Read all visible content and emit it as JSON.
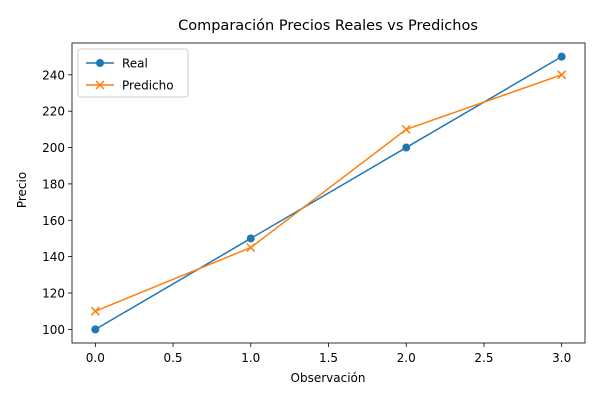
{
  "chart_data": {
    "type": "line",
    "title": "Comparación Precios Reales vs Predichos",
    "xlabel": "Observación",
    "ylabel": "Precio",
    "xlim": [
      -0.15,
      3.15
    ],
    "ylim": [
      92.5,
      257.5
    ],
    "x_ticks": [
      0.0,
      0.5,
      1.0,
      1.5,
      2.0,
      2.5,
      3.0
    ],
    "x_tick_labels": [
      "0.0",
      "0.5",
      "1.0",
      "1.5",
      "2.0",
      "2.5",
      "3.0"
    ],
    "y_ticks": [
      100,
      120,
      140,
      160,
      180,
      200,
      220,
      240
    ],
    "y_tick_labels": [
      "100",
      "120",
      "140",
      "160",
      "180",
      "200",
      "220",
      "240"
    ],
    "grid": false,
    "legend_position": "top-left",
    "series": [
      {
        "name": "Real",
        "marker": "circle",
        "color": "#1f77b4",
        "x": [
          0,
          1,
          2,
          3
        ],
        "values": [
          100,
          150,
          200,
          250
        ]
      },
      {
        "name": "Predicho",
        "marker": "x",
        "color": "#ff7f0e",
        "x": [
          0,
          1,
          2,
          3
        ],
        "values": [
          110,
          145,
          210,
          240
        ]
      }
    ]
  }
}
